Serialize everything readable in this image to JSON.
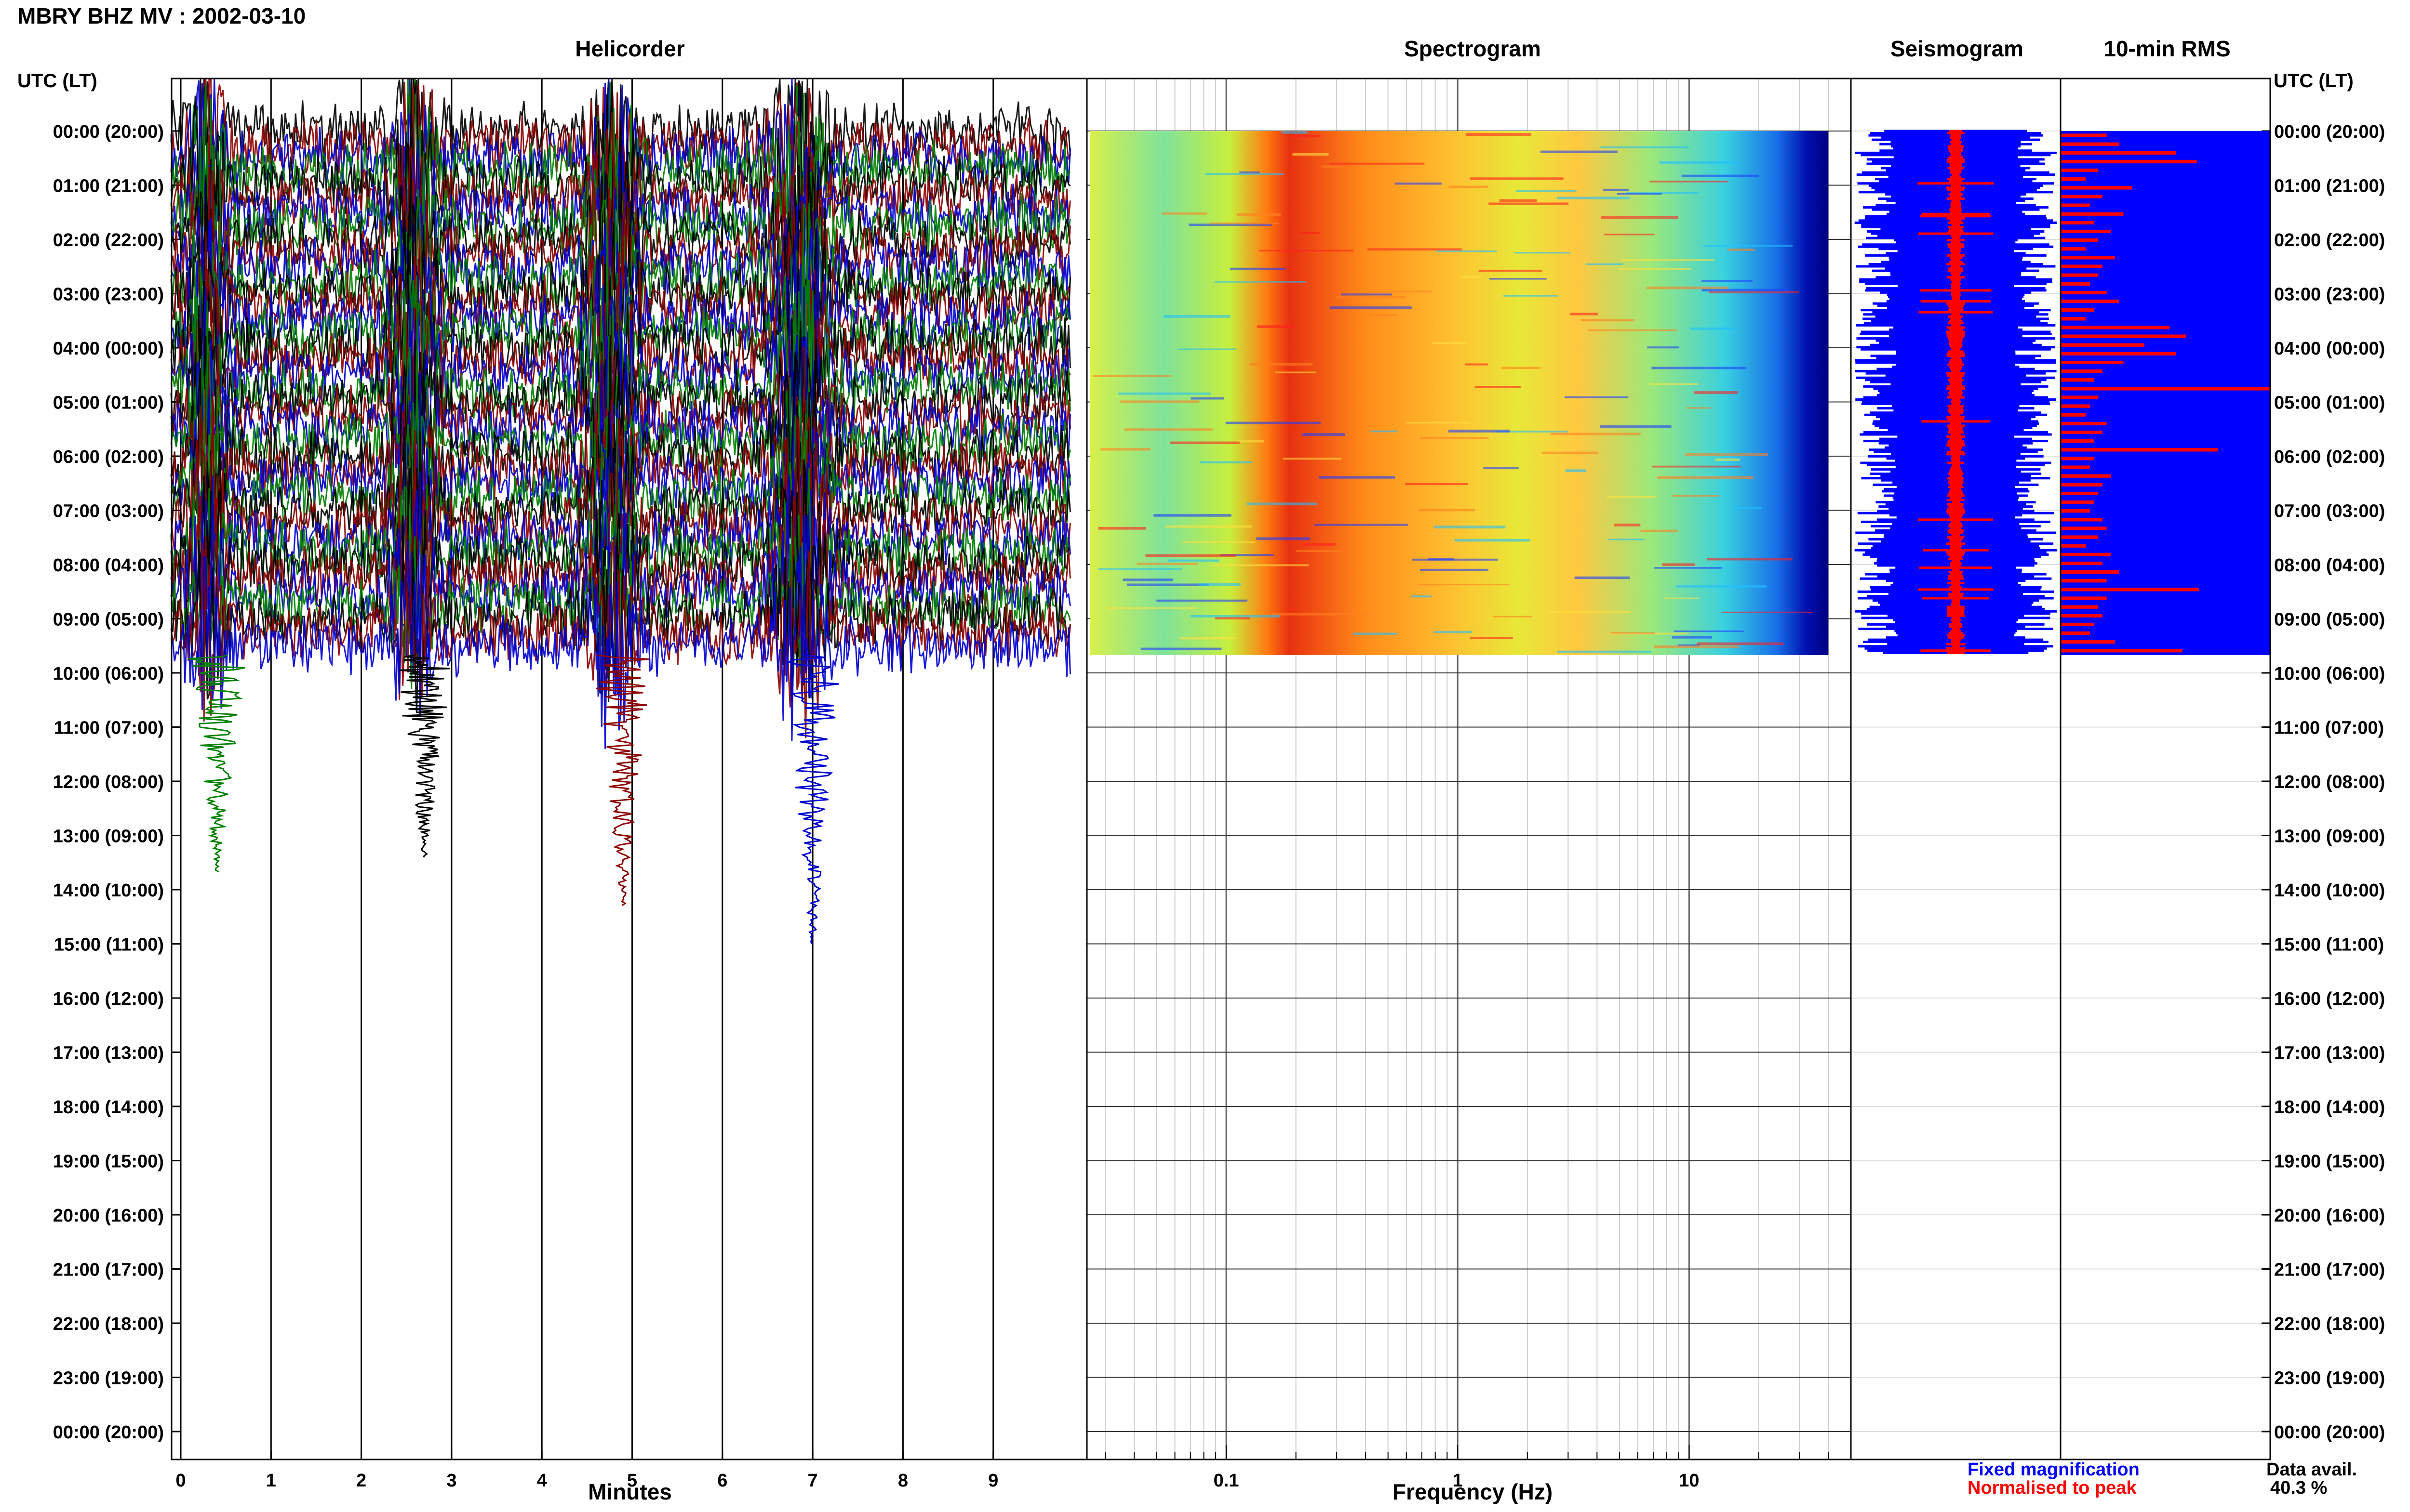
{
  "title": "MBRY BHZ MV : 2002-03-10",
  "panels": {
    "helicorder": "Helicorder",
    "spectrogram": "Spectrogram",
    "seismogram": "Seismogram",
    "rms": "10-min RMS"
  },
  "utc_header": "UTC (LT)",
  "x_labels": {
    "helicorder": "Minutes",
    "spectrogram": "Frequency (Hz)"
  },
  "legend": {
    "fixed": "Fixed magnification",
    "normalised": "Normalised to peak",
    "fixed_color": "#0000ff",
    "normalised_color": "#ff0000"
  },
  "availability": {
    "label": "Data avail.",
    "value": "40.3 %"
  },
  "colors": {
    "trace_colors": [
      "#000000",
      "#8b0000",
      "#0000cd",
      "#008000"
    ],
    "rms_fixed": "#0000ff",
    "rms_normalised": "#ff0000"
  },
  "chart_data": [
    {
      "type": "line",
      "title": "Helicorder",
      "xlabel": "Minutes",
      "x_ticks": [
        "0",
        "1",
        "2",
        "3",
        "4",
        "5",
        "6",
        "7",
        "8",
        "9"
      ],
      "xlim": [
        0,
        10
      ],
      "y_ticks": [
        "00:00 (20:00)",
        "01:00 (21:00)",
        "02:00 (22:00)",
        "03:00 (23:00)",
        "04:00 (00:00)",
        "05:00 (01:00)",
        "06:00 (02:00)",
        "07:00 (03:00)",
        "08:00 (04:00)",
        "09:00 (05:00)",
        "10:00 (06:00)",
        "11:00 (07:00)",
        "12:00 (08:00)",
        "13:00 (09:00)",
        "14:00 (10:00)",
        "15:00 (11:00)",
        "16:00 (12:00)",
        "17:00 (13:00)",
        "18:00 (14:00)",
        "19:00 (15:00)",
        "20:00 (16:00)",
        "21:00 (17:00)",
        "22:00 (18:00)",
        "23:00 (19:00)",
        "00:00 (20:00)"
      ],
      "data_until_hour": 9.67,
      "large_events_minutes": [
        0.4,
        2.7,
        4.9,
        7.0
      ]
    },
    {
      "type": "heatmap",
      "title": "Spectrogram",
      "xlabel": "Frequency (Hz)",
      "x_scale": "log",
      "x_ticks": [
        "0.1",
        "1",
        "10"
      ],
      "xlim": [
        0.025,
        50
      ],
      "data_until_hour": 9.67,
      "colormap": "jet"
    },
    {
      "type": "line",
      "title": "Seismogram",
      "data_until_hour": 9.67,
      "series": [
        {
          "name": "Fixed magnification",
          "color": "#0000ff"
        },
        {
          "name": "Normalised to peak",
          "color": "#ff0000"
        }
      ]
    },
    {
      "type": "bar",
      "title": "10-min RMS",
      "orientation": "horizontal",
      "data_until_hour": 9.67,
      "series": [
        {
          "name": "Fixed magnification",
          "color": "#0000ff"
        },
        {
          "name": "Normalised to peak",
          "color": "#ff0000"
        }
      ],
      "normalised_values": [
        0.22,
        0.28,
        0.55,
        0.65,
        0.18,
        0.12,
        0.34,
        0.2,
        0.14,
        0.3,
        0.16,
        0.24,
        0.18,
        0.12,
        0.26,
        0.2,
        0.18,
        0.14,
        0.22,
        0.28,
        0.16,
        0.12,
        0.52,
        0.6,
        0.4,
        0.55,
        0.3,
        0.2,
        0.16,
        1.0,
        0.18,
        0.14,
        0.12,
        0.22,
        0.2,
        0.16,
        0.75,
        0.16,
        0.14,
        0.24,
        0.2,
        0.18,
        0.16,
        0.14,
        0.2,
        0.22,
        0.18,
        0.12,
        0.24,
        0.2,
        0.28,
        0.22,
        0.66,
        0.22,
        0.18,
        0.2,
        0.16,
        0.14,
        0.26,
        0.58
      ]
    }
  ]
}
